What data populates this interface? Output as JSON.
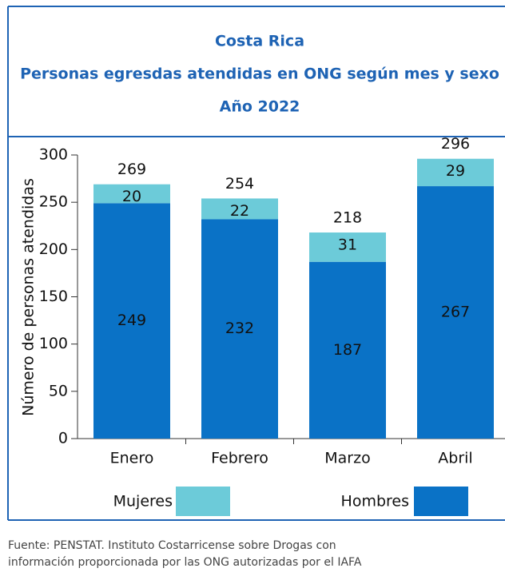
{
  "chart_data": {
    "type": "stacked_bar",
    "title": [
      "Costa Rica",
      "Personas egresdas atendidas en ONG según mes y sexo",
      "Año 2022"
    ],
    "ylabel": "Número de personas atendidas",
    "categories": [
      "Enero",
      "Febrero",
      "Marzo",
      "Abril"
    ],
    "series": [
      {
        "name": "Hombres",
        "color": "#0a72c6",
        "values": [
          249,
          232,
          187,
          267
        ]
      },
      {
        "name": "Mujeres",
        "color": "#6ccbd9",
        "values": [
          20,
          22,
          31,
          29
        ]
      }
    ],
    "totals": [
      269,
      254,
      218,
      296
    ],
    "legend_order": [
      "Mujeres",
      "Hombres"
    ],
    "ylim": [
      0,
      300
    ],
    "yticks": [
      0,
      50,
      100,
      150,
      200,
      250,
      300
    ],
    "source": [
      "Fuente: PENSTAT. Instituto Costarricense sobre Drogas con",
      "información proporcionada por las ONG autorizadas por el IAFA"
    ]
  }
}
